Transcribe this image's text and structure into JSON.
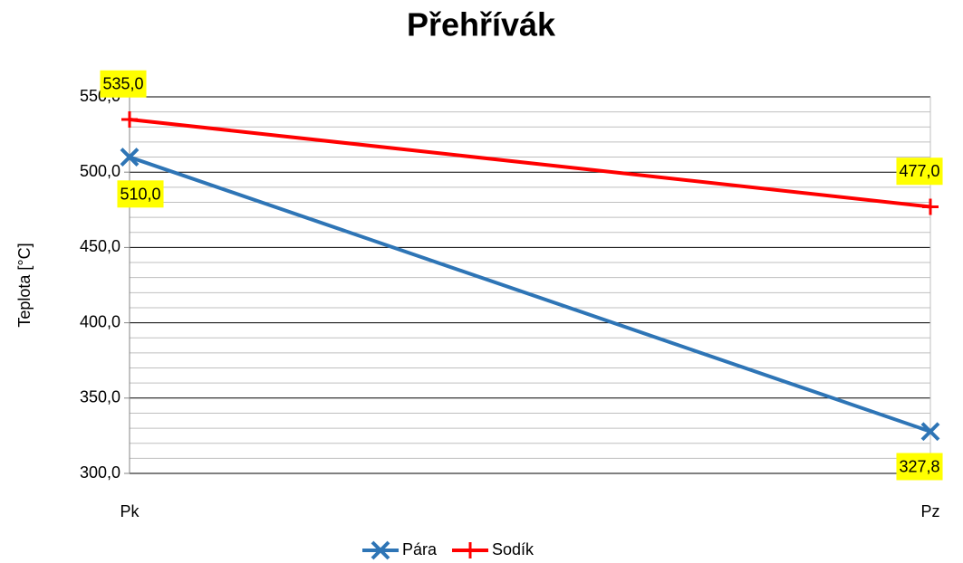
{
  "chart_data": {
    "type": "line",
    "title": "Přehřívák",
    "y_label": "Teplota [°C]",
    "categories": [
      "Pk",
      "Pz"
    ],
    "series": [
      {
        "name": "Pára",
        "color": "#2e75b6",
        "marker": "x",
        "values": [
          510,
          327.8
        ],
        "value_labels": [
          "510,0",
          "327,8"
        ]
      },
      {
        "name": "Sodík",
        "color": "#ff0000",
        "marker": "+",
        "values": [
          535,
          477
        ],
        "value_labels": [
          "535,0",
          "477,0"
        ]
      }
    ],
    "ylim": [
      300,
      550
    ],
    "yticks": [
      {
        "value": 300,
        "label": "300,0"
      },
      {
        "value": 350,
        "label": "350,0"
      },
      {
        "value": 400,
        "label": "400,0"
      },
      {
        "value": 450,
        "label": "450,0"
      },
      {
        "value": 500,
        "label": "500,0"
      },
      {
        "value": 550,
        "label": "550,0"
      }
    ],
    "minor_yticks": [
      310,
      320,
      330,
      340,
      360,
      370,
      380,
      390,
      410,
      420,
      430,
      440,
      460,
      470,
      480,
      490,
      510,
      520,
      530,
      540
    ],
    "grid": true,
    "legend": "bottom",
    "label_color": "#ffff00"
  }
}
